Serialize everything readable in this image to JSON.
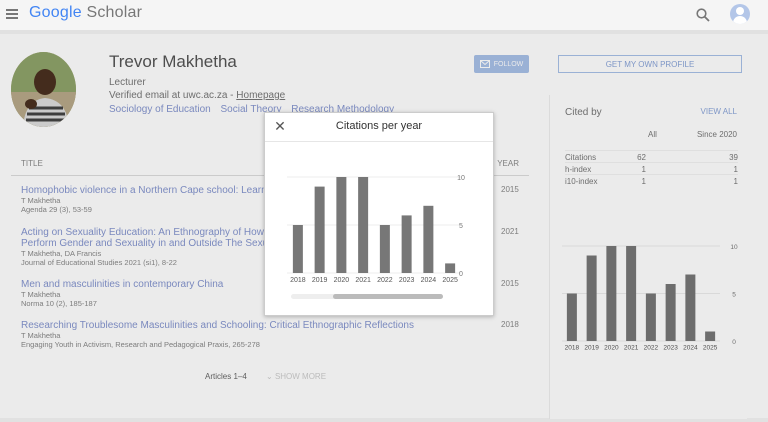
{
  "header": {
    "logo_google": "Google",
    "logo_scholar": "Scholar",
    "icons": {
      "menu": "hamburger-menu-icon",
      "search": "search-icon",
      "account": "account-avatar-icon"
    }
  },
  "profile": {
    "name": "Trevor Makhetha",
    "role": "Lecturer",
    "email_text": "Verified email at uwc.ac.za - ",
    "homepage_label": "Homepage",
    "interests": [
      "Sociology of Education",
      "Social Theory",
      "Research Methodology"
    ],
    "follow_label": "FOLLOW",
    "get_profile_label": "GET MY OWN PROFILE"
  },
  "table": {
    "col_title": "TITLE",
    "col_year": "YEAR",
    "articles": [
      {
        "title": "Homophobic violence in a Northern Cape school: Learners",
        "authors": "T Makhetha",
        "venue": "Agenda 29 (3), 53-59",
        "year": "2015"
      },
      {
        "title": "Acting on Sexuality Education: An Ethnography of How Y",
        "title2": "Perform Gender and Sexuality in and Outside The Sexua",
        "authors": "T Makhetha, DA Francis",
        "venue": "Journal of Educational Studies 2021 (si1), 8-22",
        "year": "2021"
      },
      {
        "title": "Men and masculinities in contemporary China",
        "authors": "T Makhetha",
        "venue": "Norma 10 (2), 185-187",
        "year": "2015"
      },
      {
        "title": "Researching Troublesome Masculinities and Schooling: Critical Ethnographic Reflections",
        "authors": "T Makhetha",
        "venue": "Engaging Youth in Activism, Research and Pedagogical Praxis, 265-278",
        "year": "2018"
      }
    ],
    "articles_count": "Articles 1–4",
    "show_more": "SHOW MORE"
  },
  "cited_by": {
    "title": "Cited by",
    "view_all": "VIEW ALL",
    "col_all": "All",
    "col_since": "Since 2020",
    "rows": [
      {
        "label": "Citations",
        "all": "62",
        "since": "39"
      },
      {
        "label": "h-index",
        "all": "1",
        "since": "1"
      },
      {
        "label": "i10-index",
        "all": "1",
        "since": "1"
      }
    ]
  },
  "dialog": {
    "title": "Citations per year",
    "close_icon": "close-icon"
  },
  "chart_data": {
    "type": "bar",
    "categories": [
      "2018",
      "2019",
      "2020",
      "2021",
      "2022",
      "2023",
      "2024",
      "2025"
    ],
    "values": [
      5,
      9,
      10,
      10,
      5,
      6,
      7,
      1
    ],
    "y_ticks": [
      "0",
      "5",
      "10"
    ],
    "ylim": [
      0,
      10
    ],
    "grid": true,
    "bar_color": "#777777"
  }
}
